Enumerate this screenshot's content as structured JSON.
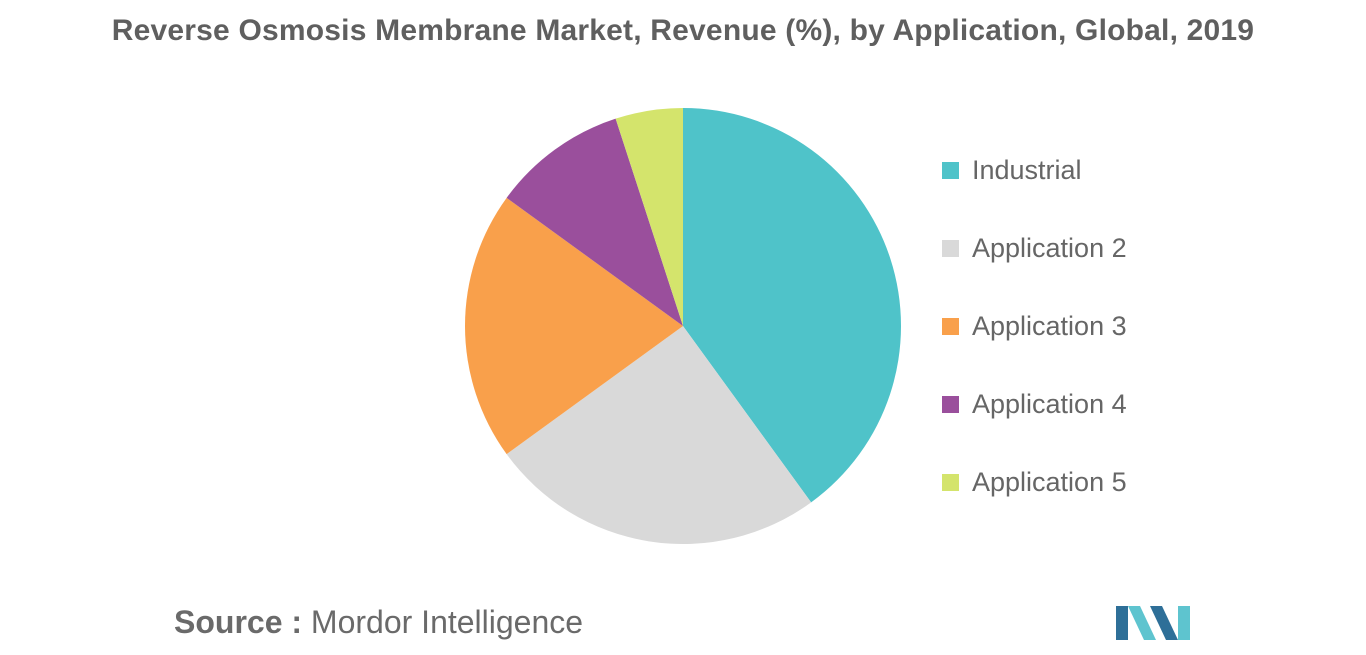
{
  "chart_data": {
    "type": "pie",
    "title": "Reverse Osmosis Membrane Market, Revenue (%), by Application, Global, 2019",
    "slices": [
      {
        "label": "Industrial",
        "value": 40,
        "color": "#4fc3c9"
      },
      {
        "label": "Application 2",
        "value": 25,
        "color": "#d9d9d9"
      },
      {
        "label": "Application 3",
        "value": 20,
        "color": "#f9a04b"
      },
      {
        "label": "Application 4",
        "value": 10,
        "color": "#9a4f9c"
      },
      {
        "label": "Application 5",
        "value": 5,
        "color": "#d4e46c"
      }
    ],
    "legend_position": "right"
  },
  "footer": {
    "source_label": "Source :",
    "source_name": "Mordor Intelligence"
  },
  "logo": {
    "icon": "mordor-intelligence-logo",
    "colors": [
      "#2e6f98",
      "#5ec4cf"
    ]
  }
}
